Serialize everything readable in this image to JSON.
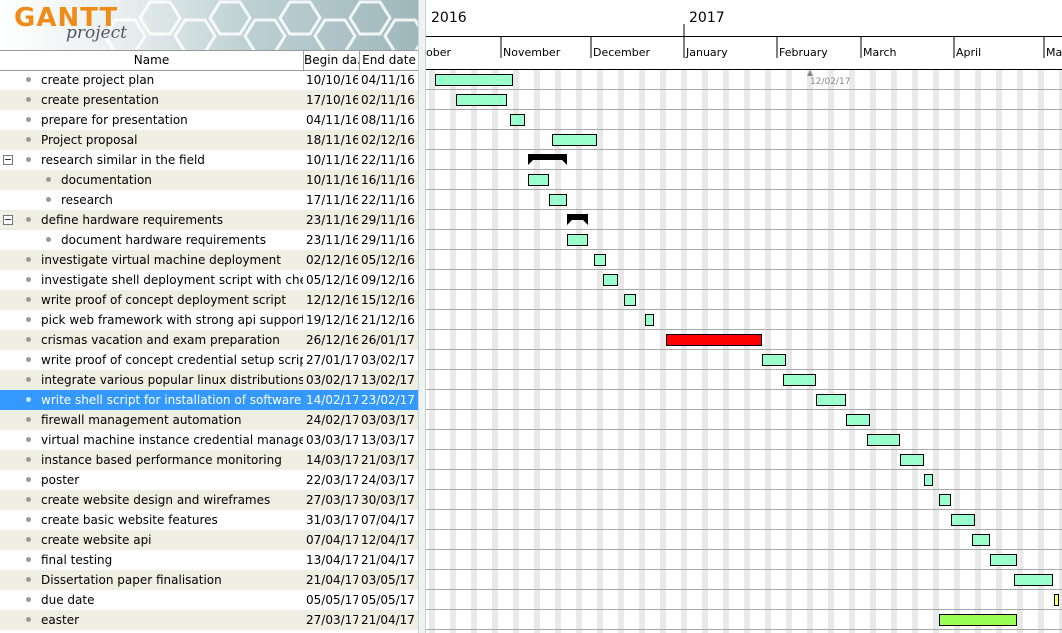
{
  "app": {
    "logo_word": "GANTT",
    "logo_sub": "project"
  },
  "columns": {
    "name": "Name",
    "begin": "Begin da...",
    "end": "End date"
  },
  "timeline": {
    "years": [
      "2016",
      "2017"
    ],
    "months": [
      "ober",
      "November",
      "December",
      "January",
      "February",
      "March",
      "April",
      "May"
    ],
    "marker_label": "12/02/17"
  },
  "colors": {
    "task": "#99ffcc",
    "highlight": "#ff0000",
    "milestone": "#ffff66",
    "holiday": "#99ff55",
    "selection": "#3399ff"
  },
  "tasks": [
    {
      "name": "create project plan",
      "begin": "10/10/16",
      "end": "04/11/16",
      "level": 0
    },
    {
      "name": "create presentation",
      "begin": "17/10/16",
      "end": "02/11/16",
      "level": 0
    },
    {
      "name": "prepare for presentation",
      "begin": "04/11/16",
      "end": "08/11/16",
      "level": 0
    },
    {
      "name": "Project proposal",
      "begin": "18/11/16",
      "end": "02/12/16",
      "level": 0
    },
    {
      "name": "research similar in the field",
      "begin": "10/11/16",
      "end": "22/11/16",
      "level": 0,
      "group": true
    },
    {
      "name": "documentation",
      "begin": "10/11/16",
      "end": "16/11/16",
      "level": 1
    },
    {
      "name": "research",
      "begin": "17/11/16",
      "end": "22/11/16",
      "level": 1
    },
    {
      "name": "define hardware requirements",
      "begin": "23/11/16",
      "end": "29/11/16",
      "level": 0,
      "group": true
    },
    {
      "name": "document hardware requirements",
      "begin": "23/11/16",
      "end": "29/11/16",
      "level": 1
    },
    {
      "name": "investigate virtual machine deployment",
      "begin": "02/12/16",
      "end": "05/12/16",
      "level": 0
    },
    {
      "name": "investigate shell deployment script with chef",
      "begin": "05/12/16",
      "end": "09/12/16",
      "level": 0
    },
    {
      "name": "write proof of concept deployment script",
      "begin": "12/12/16",
      "end": "15/12/16",
      "level": 0
    },
    {
      "name": "pick web framework with strong api support",
      "begin": "19/12/16",
      "end": "21/12/16",
      "level": 0
    },
    {
      "name": "crismas vacation and exam preparation",
      "begin": "26/12/16",
      "end": "26/01/17",
      "level": 0,
      "color": "red"
    },
    {
      "name": "write proof of concept credential setup script",
      "begin": "27/01/17",
      "end": "03/02/17",
      "level": 0
    },
    {
      "name": "integrate various popular linux distributions",
      "begin": "03/02/17",
      "end": "13/02/17",
      "level": 0
    },
    {
      "name": "write shell script for installation of software",
      "begin": "14/02/17",
      "end": "23/02/17",
      "level": 0,
      "selected": true
    },
    {
      "name": "firewall management automation",
      "begin": "24/02/17",
      "end": "03/03/17",
      "level": 0
    },
    {
      "name": "virtual machine instance credential management",
      "begin": "03/03/17",
      "end": "13/03/17",
      "level": 0
    },
    {
      "name": "instance based performance monitoring",
      "begin": "14/03/17",
      "end": "21/03/17",
      "level": 0
    },
    {
      "name": "poster",
      "begin": "22/03/17",
      "end": "24/03/17",
      "level": 0
    },
    {
      "name": "create website design and wireframes",
      "begin": "27/03/17",
      "end": "30/03/17",
      "level": 0
    },
    {
      "name": "create basic website features",
      "begin": "31/03/17",
      "end": "07/04/17",
      "level": 0
    },
    {
      "name": "create website api",
      "begin": "07/04/17",
      "end": "12/04/17",
      "level": 0
    },
    {
      "name": "final testing",
      "begin": "13/04/17",
      "end": "21/04/17",
      "level": 0
    },
    {
      "name": "Dissertation paper finalisation",
      "begin": "21/04/17",
      "end": "03/05/17",
      "level": 0
    },
    {
      "name": "due date",
      "begin": "05/05/17",
      "end": "05/05/17",
      "level": 0,
      "color": "milestone"
    },
    {
      "name": "easter",
      "begin": "27/03/17",
      "end": "21/04/17",
      "level": 0,
      "color": "holiday"
    }
  ]
}
